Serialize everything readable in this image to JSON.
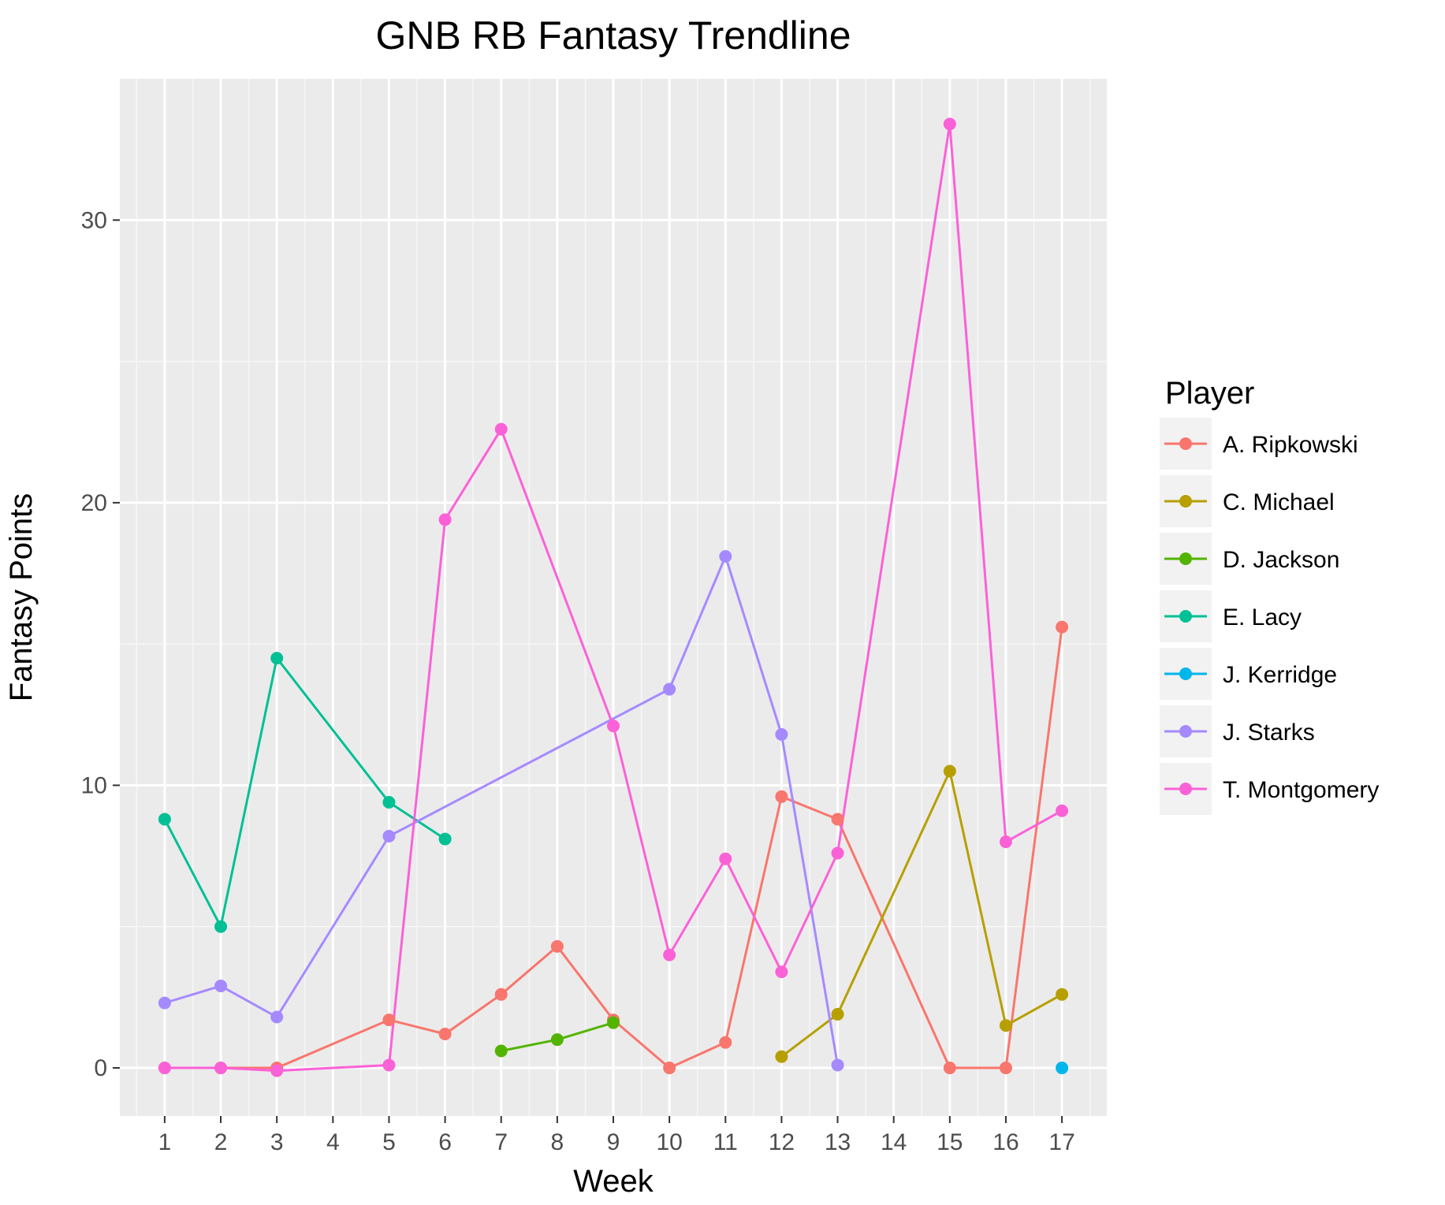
{
  "chart_data": {
    "type": "line",
    "title": "GNB RB Fantasy Trendline",
    "xlabel": "Week",
    "ylabel": "Fantasy Points",
    "x_ticks": [
      1,
      2,
      3,
      4,
      5,
      6,
      7,
      8,
      9,
      10,
      11,
      12,
      13,
      14,
      15,
      16,
      17
    ],
    "y_ticks": [
      0,
      10,
      20,
      30
    ],
    "xlim": [
      0.2,
      17.8
    ],
    "ylim": [
      -1.7,
      35.0
    ],
    "grid": true,
    "legend": {
      "title": "Player",
      "position": "right"
    },
    "series": [
      {
        "name": "A. Ripkowski",
        "color": "#F8766D",
        "points": [
          [
            1,
            0
          ],
          [
            2,
            0
          ],
          [
            3,
            0
          ],
          [
            5,
            1.7
          ],
          [
            6,
            1.2
          ],
          [
            7,
            2.6
          ],
          [
            8,
            4.3
          ],
          [
            9,
            1.7
          ],
          [
            10,
            0
          ],
          [
            11,
            0.9
          ],
          [
            12,
            9.6
          ],
          [
            13,
            8.8
          ],
          [
            15,
            0
          ],
          [
            16,
            0
          ],
          [
            17,
            15.6
          ]
        ]
      },
      {
        "name": "C. Michael",
        "color": "#B79F00",
        "points": [
          [
            12,
            0.4
          ],
          [
            13,
            1.9
          ],
          [
            15,
            10.5
          ],
          [
            16,
            1.5
          ],
          [
            17,
            2.6
          ]
        ]
      },
      {
        "name": "D. Jackson",
        "color": "#53B400",
        "points": [
          [
            7,
            0.6
          ],
          [
            8,
            1.0
          ],
          [
            9,
            1.6
          ]
        ]
      },
      {
        "name": "E. Lacy",
        "color": "#00C094",
        "points": [
          [
            1,
            8.8
          ],
          [
            2,
            5.0
          ],
          [
            3,
            14.5
          ],
          [
            5,
            9.4
          ],
          [
            6,
            8.1
          ]
        ]
      },
      {
        "name": "J. Kerridge",
        "color": "#00B6EB",
        "points": [
          [
            17,
            0
          ]
        ]
      },
      {
        "name": "J. Starks",
        "color": "#A58AFF",
        "points": [
          [
            1,
            2.3
          ],
          [
            2,
            2.9
          ],
          [
            3,
            1.8
          ],
          [
            5,
            8.2
          ],
          [
            10,
            13.4
          ],
          [
            11,
            18.1
          ],
          [
            12,
            11.8
          ],
          [
            13,
            0.1
          ]
        ]
      },
      {
        "name": "T. Montgomery",
        "color": "#FB61D7",
        "points": [
          [
            1,
            0
          ],
          [
            2,
            0
          ],
          [
            3,
            -0.1
          ],
          [
            5,
            0.1
          ],
          [
            6,
            19.4
          ],
          [
            7,
            22.6
          ],
          [
            9,
            12.1
          ],
          [
            10,
            4.0
          ],
          [
            11,
            7.4
          ],
          [
            12,
            3.4
          ],
          [
            13,
            7.6
          ],
          [
            15,
            33.4
          ],
          [
            16,
            8.0
          ],
          [
            17,
            9.1
          ]
        ]
      }
    ]
  }
}
